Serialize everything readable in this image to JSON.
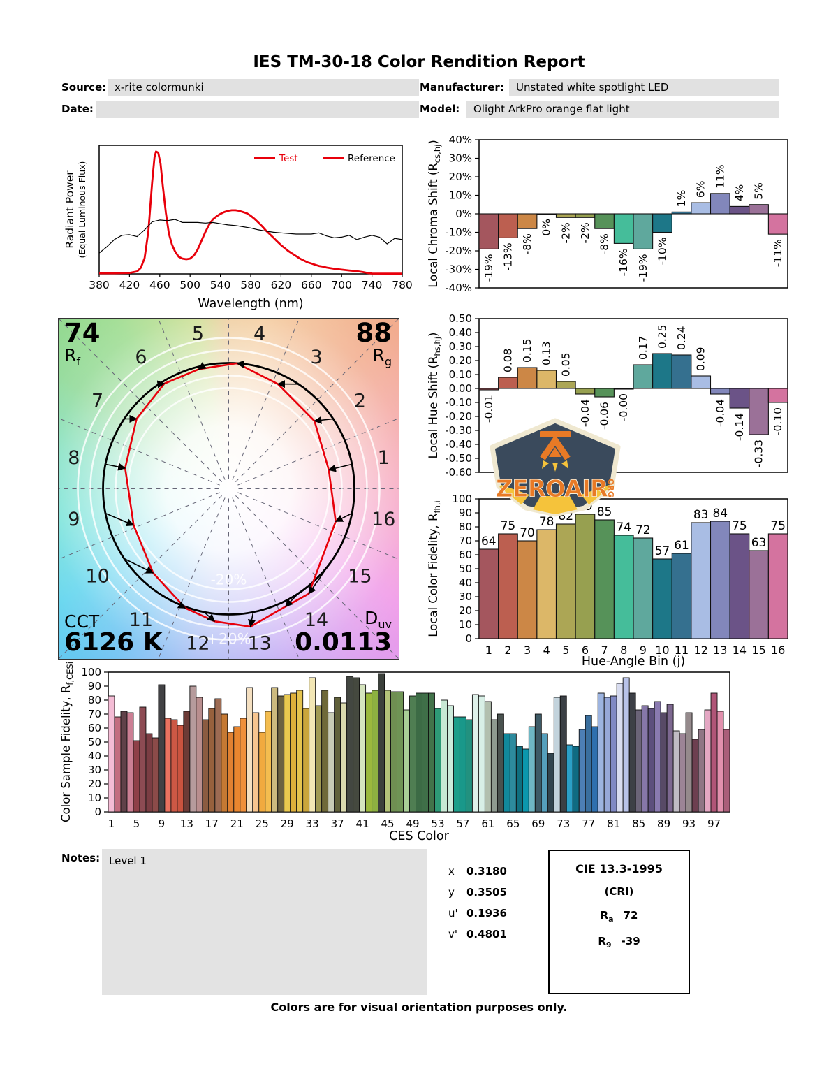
{
  "title": "IES TM-30-18 Color Rendition Report",
  "meta": {
    "source_label": "Source:",
    "source": "x-rite colormunki",
    "date_label": "Date:",
    "date": "",
    "manufacturer_label": "Manufacturer:",
    "manufacturer": "Unstated white spotlight LED",
    "model_label": "Model:",
    "model": "Olight ArkPro orange flat light"
  },
  "hue_bin_colors": [
    "#a4565e",
    "#bc5f50",
    "#cc8746",
    "#dcb768",
    "#aca655",
    "#97a050",
    "#569259",
    "#45bd9a",
    "#5fa89d",
    "#1d7788",
    "#35708f",
    "#a9bde4",
    "#8287bb",
    "#6b5387",
    "#9b7198",
    "#d4739f"
  ],
  "chart_data": [
    {
      "id": "spd",
      "type": "line",
      "xlabel": "Wavelength (nm)",
      "ylabel": "Radiant Power",
      "ylabel2": "(Equal Luminous Flux)",
      "xlim": [
        380,
        780
      ],
      "xticks": [
        380,
        420,
        460,
        500,
        540,
        580,
        620,
        660,
        700,
        740,
        780
      ],
      "legend": [
        {
          "label": "Test",
          "line_color": "#e8000b",
          "text_color": "#e8000b"
        },
        {
          "label": "Reference",
          "line_color": "#e8000b",
          "text_color": "#000000"
        }
      ],
      "series": [
        {
          "name": "Test",
          "color": "#e8000b",
          "width": 2.8,
          "x": [
            380,
            400,
            420,
            430,
            435,
            440,
            445,
            450,
            453,
            455,
            458,
            461,
            464,
            468,
            472,
            476,
            480,
            485,
            490,
            495,
            500,
            505,
            510,
            515,
            520,
            525,
            530,
            535,
            540,
            545,
            550,
            555,
            560,
            565,
            570,
            575,
            580,
            585,
            590,
            595,
            600,
            605,
            610,
            615,
            620,
            625,
            630,
            635,
            640,
            645,
            650,
            655,
            660,
            665,
            670,
            675,
            680,
            690,
            700,
            710,
            720,
            728,
            735,
            740,
            760,
            780
          ],
          "y": [
            0.005,
            0.005,
            0.008,
            0.02,
            0.05,
            0.13,
            0.35,
            0.75,
            0.95,
            1.0,
            0.99,
            0.9,
            0.72,
            0.5,
            0.33,
            0.24,
            0.185,
            0.14,
            0.125,
            0.12,
            0.125,
            0.15,
            0.2,
            0.27,
            0.34,
            0.4,
            0.445,
            0.47,
            0.49,
            0.505,
            0.515,
            0.52,
            0.52,
            0.515,
            0.505,
            0.495,
            0.475,
            0.45,
            0.42,
            0.39,
            0.355,
            0.325,
            0.295,
            0.265,
            0.235,
            0.21,
            0.185,
            0.165,
            0.145,
            0.125,
            0.11,
            0.095,
            0.085,
            0.075,
            0.065,
            0.06,
            0.052,
            0.042,
            0.035,
            0.028,
            0.022,
            0.015,
            0.006,
            0.003,
            0.002,
            0.002
          ]
        },
        {
          "name": "Reference",
          "color": "#000000",
          "width": 1.2,
          "x_start": 380,
          "x_step": 10,
          "y": [
            0.17,
            0.22,
            0.28,
            0.315,
            0.32,
            0.305,
            0.36,
            0.425,
            0.44,
            0.435,
            0.445,
            0.42,
            0.42,
            0.42,
            0.415,
            0.42,
            0.41,
            0.4,
            0.395,
            0.385,
            0.375,
            0.36,
            0.35,
            0.34,
            0.335,
            0.33,
            0.325,
            0.325,
            0.325,
            0.335,
            0.31,
            0.295,
            0.3,
            0.315,
            0.28,
            0.3,
            0.315,
            0.3,
            0.245,
            0.29,
            0.28
          ]
        }
      ]
    },
    {
      "id": "local_chroma_shift",
      "type": "bar",
      "ylabel": "Local Chroma Shift (R_{cs,hj})",
      "categories": [
        1,
        2,
        3,
        4,
        5,
        6,
        7,
        8,
        9,
        10,
        11,
        12,
        13,
        14,
        15,
        16
      ],
      "values": [
        -19,
        -13,
        -8,
        0,
        -2,
        -2,
        -8,
        -16,
        -19,
        -10,
        1,
        6,
        11,
        4,
        5,
        -11
      ],
      "labels": [
        "-19%",
        "-13%",
        "-8%",
        "0%",
        "-2%",
        "-2%",
        "-8%",
        "-16%",
        "-19%",
        "-10%",
        "1%",
        "6%",
        "11%",
        "4%",
        "5%",
        "-11%"
      ],
      "ylim": [
        -40,
        40
      ],
      "ytick_step": 10,
      "ytick_suffix": "%"
    },
    {
      "id": "cvg",
      "type": "cvg",
      "rf": "74",
      "rf_label": {
        "sym": "R",
        "sub": "f"
      },
      "rg": "88",
      "rg_label": {
        "sym": "R",
        "sub": "g"
      },
      "cct_label": "CCT",
      "cct": "6126 K",
      "duv_label": {
        "sym": "D",
        "sub": "uv"
      },
      "duv": "0.0113",
      "ring_labels": [
        "-20%",
        "+20%"
      ],
      "bins": [
        1,
        2,
        3,
        4,
        5,
        6,
        7,
        8,
        9,
        10,
        11,
        12,
        13,
        14,
        15,
        16
      ],
      "rcs": [
        -0.19,
        -0.13,
        -0.08,
        0.0,
        -0.02,
        -0.02,
        -0.08,
        -0.16,
        -0.19,
        -0.1,
        0.01,
        0.06,
        0.11,
        0.04,
        0.05,
        -0.11
      ],
      "rhs": [
        -0.01,
        0.08,
        0.15,
        0.13,
        0.05,
        -0.04,
        -0.06,
        0.0,
        0.17,
        0.25,
        0.24,
        0.09,
        -0.04,
        -0.14,
        -0.33,
        -0.1
      ],
      "test_color": "#e8000b",
      "reference_color": "#000000"
    },
    {
      "id": "local_hue_shift",
      "type": "bar",
      "ylabel": "Local Hue Shift (R_{hs,hj})",
      "categories": [
        1,
        2,
        3,
        4,
        5,
        6,
        7,
        8,
        9,
        10,
        11,
        12,
        13,
        14,
        15,
        16
      ],
      "values": [
        -0.01,
        0.08,
        0.15,
        0.13,
        0.05,
        -0.04,
        -0.06,
        0,
        0.17,
        0.25,
        0.24,
        0.09,
        -0.04,
        -0.14,
        -0.33,
        -0.1
      ],
      "labels": [
        "-0.01",
        "0.08",
        "0.15",
        "0.13",
        "0.05",
        "-0.04",
        "-0.06",
        "-0.00",
        "0.17",
        "0.25",
        "0.24",
        "0.09",
        "-0.04",
        "-0.14",
        "-0.33",
        "-0.10"
      ],
      "ylim": [
        -0.6,
        0.5
      ],
      "ytick_step": 0.1,
      "ytick_decimals": 2
    },
    {
      "id": "local_color_fidelity",
      "type": "bar",
      "ylabel": "Local Color Fidelity, R_{fh,i}",
      "xlabel": "Hue-Angle Bin (j)",
      "categories": [
        1,
        2,
        3,
        4,
        5,
        6,
        7,
        8,
        9,
        10,
        11,
        12,
        13,
        14,
        15,
        16
      ],
      "values": [
        64,
        75,
        70,
        78,
        82,
        89,
        85,
        74,
        72,
        57,
        61,
        83,
        84,
        75,
        63,
        75
      ],
      "labels": [
        "64",
        "75",
        "70",
        "78",
        "82",
        "89",
        "85",
        "74",
        "72",
        "57",
        "61",
        "83",
        "84",
        "75",
        "63",
        "75"
      ],
      "ylim": [
        0,
        100
      ],
      "ytick_step": 10
    },
    {
      "id": "ces_fidelity",
      "type": "bar",
      "ylabel": "Color Sample Fidelity, R_{f,CESi}",
      "xlabel": "CES Color",
      "xticks": [
        1,
        5,
        9,
        13,
        17,
        21,
        25,
        29,
        33,
        37,
        41,
        45,
        49,
        53,
        57,
        61,
        65,
        69,
        73,
        77,
        81,
        85,
        89,
        93,
        97
      ],
      "values": [
        83,
        68,
        72,
        71,
        51,
        75,
        56,
        53,
        91,
        67,
        66,
        62,
        72,
        90,
        82,
        66,
        74,
        81,
        70,
        57,
        61,
        67,
        89,
        71,
        57,
        72,
        89,
        83,
        84,
        85,
        87,
        74,
        96,
        76,
        87,
        71,
        82,
        78,
        97,
        96,
        91,
        85,
        87,
        99,
        87,
        86,
        86,
        73,
        83,
        85,
        85,
        85,
        74,
        80,
        76,
        68,
        68,
        66,
        84,
        83,
        79,
        66,
        70,
        56,
        56,
        47,
        45,
        61,
        70,
        56,
        42,
        82,
        83,
        48,
        47,
        59,
        69,
        61,
        85,
        82,
        83,
        92,
        96,
        85,
        73,
        76,
        74,
        79,
        71,
        77,
        58,
        56,
        71,
        52,
        59,
        73,
        85,
        72,
        59
      ],
      "colors": [
        "#f4bcd5",
        "#c36d80",
        "#604149",
        "#cb7f94",
        "#8e4048",
        "#8d4b53",
        "#7b3d43",
        "#8c4b49",
        "#414144",
        "#e97260",
        "#cd5845",
        "#ca533f",
        "#6c3b36",
        "#b69b9c",
        "#b98e8e",
        "#8b5b40",
        "#97613d",
        "#9d6b53",
        "#c57933",
        "#e18131",
        "#e9862f",
        "#f0903b",
        "#f5e0c1",
        "#f7c58f",
        "#f1aa3f",
        "#f4bd4f",
        "#ccba7f",
        "#6c6241",
        "#e9c94f",
        "#deb03b",
        "#e5c44f",
        "#caa53b",
        "#f3e7b5",
        "#a19a53",
        "#6f6939",
        "#c7cab5",
        "#60603a",
        "#dadaae",
        "#434741",
        "#45493f",
        "#d5e4bd",
        "#9bb93d",
        "#8db141",
        "#3b403b",
        "#b3c379",
        "#6f8f52",
        "#6f9455",
        "#a9cf97",
        "#4f7e52",
        "#3c6b45",
        "#3f6f48",
        "#42734a",
        "#2e9a77",
        "#c8e8d4",
        "#cdebdb",
        "#1d9e8a",
        "#19988a",
        "#22917f",
        "#dff1ea",
        "#d8efe6",
        "#b2bfae",
        "#8e9b91",
        "#49524f",
        "#12899c",
        "#2d8b9e",
        "#0f6f80",
        "#0c97ad",
        "#6fb7c4",
        "#3d5a66",
        "#559fbc",
        "#32454f",
        "#c3d3dc",
        "#3b4045",
        "#2ba0c8",
        "#0f6b83",
        "#4d7fb5",
        "#3a6f9e",
        "#2f6fae",
        "#9db4e0",
        "#97a8d8",
        "#8089c4",
        "#d8dcf0",
        "#b8c2e8",
        "#3d4046",
        "#6b6478",
        "#8677a8",
        "#5d4f7d",
        "#8a7ab0",
        "#584a66",
        "#7d6890",
        "#c0bcc4",
        "#9c8496",
        "#958a8c",
        "#6d3f50",
        "#8f7585",
        "#e4a7c3",
        "#b05577",
        "#e290ad",
        "#aa5e79"
      ],
      "ylim": [
        0,
        100
      ],
      "ytick_step": 10
    }
  ],
  "logo": {
    "text": "ZEROAIR",
    "org": "ORG"
  },
  "notes": {
    "label": "Notes:",
    "text": "Level 1"
  },
  "chromaticity": {
    "rows": [
      {
        "label": "x",
        "value": "0.3180"
      },
      {
        "label": "y",
        "value": "0.3505"
      },
      {
        "label": "u'",
        "value": "0.1936"
      },
      {
        "label": "v'",
        "value": "0.4801"
      }
    ]
  },
  "cri": {
    "title": "CIE 13.3-1995",
    "subtitle": "(CRI)",
    "ra": {
      "sym": "R",
      "sub": "a",
      "value": "72"
    },
    "r9": {
      "sym": "R",
      "sub": "9",
      "value": "-39"
    }
  },
  "footer": "Colors are for visual orientation purposes only."
}
